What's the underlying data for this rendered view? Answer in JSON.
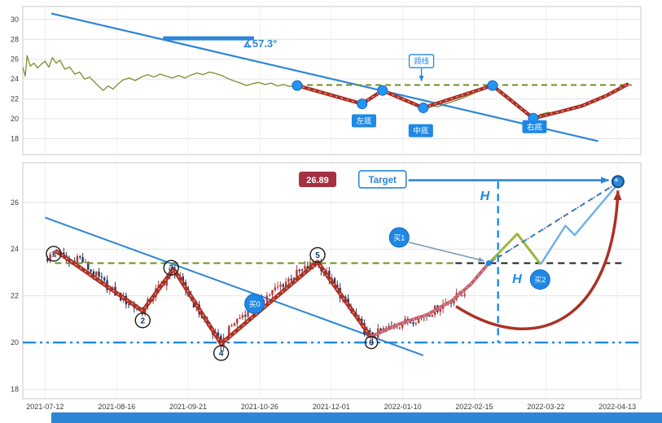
{
  "colors": {
    "accent_blue": "#2e86d6",
    "badge_blue": "#1e88e5",
    "dot_blue": "#2196f3",
    "crimson": "#a93226",
    "rose": "#c4606e",
    "zig_overlay": "#f2a0a0",
    "olive": "#7e8b2c",
    "green_line": "#6b8e23",
    "lime_zig": "#9ab73c",
    "light_blue_zig": "#6fb1e8",
    "badge_red_bg": "#a53042",
    "black_line": "#1a1a1a",
    "grid": "#e4e4e4",
    "grid_v": "#f0f0f0",
    "axis_text": "#3c3c3c",
    "panel_border": "#c9c9c9",
    "candle_up": "#b03a3a",
    "candle_down": "#24365e",
    "slate_arrow": "#7a99b8"
  },
  "footer": {
    "strip_color": "#2e86d6"
  },
  "chart_data": [
    {
      "id": "overview-pane",
      "type": "line",
      "ylim": [
        16.4,
        31.3
      ],
      "yticks": [
        30,
        28,
        26,
        24,
        22,
        20,
        18
      ],
      "grid": true,
      "series": [
        {
          "name": "price",
          "points": [
            [
              0.0,
              25.2
            ],
            [
              0.004,
              24.3
            ],
            [
              0.007,
              26.35
            ],
            [
              0.012,
              25.3
            ],
            [
              0.018,
              25.6
            ],
            [
              0.024,
              25.1
            ],
            [
              0.03,
              25.5
            ],
            [
              0.036,
              25.8
            ],
            [
              0.042,
              25.2
            ],
            [
              0.048,
              26.15
            ],
            [
              0.054,
              25.6
            ],
            [
              0.06,
              25.9
            ],
            [
              0.068,
              25.0
            ],
            [
              0.076,
              25.2
            ],
            [
              0.084,
              24.5
            ],
            [
              0.092,
              24.7
            ],
            [
              0.1,
              24.0
            ],
            [
              0.108,
              24.2
            ],
            [
              0.116,
              23.7
            ],
            [
              0.124,
              23.2
            ],
            [
              0.13,
              22.85
            ],
            [
              0.138,
              23.3
            ],
            [
              0.146,
              23.0
            ],
            [
              0.154,
              23.5
            ],
            [
              0.162,
              23.9
            ],
            [
              0.172,
              24.1
            ],
            [
              0.182,
              23.85
            ],
            [
              0.192,
              24.2
            ],
            [
              0.202,
              24.45
            ],
            [
              0.212,
              24.2
            ],
            [
              0.222,
              24.5
            ],
            [
              0.232,
              24.3
            ],
            [
              0.242,
              24.1
            ],
            [
              0.252,
              24.35
            ],
            [
              0.262,
              24.1
            ],
            [
              0.272,
              24.4
            ],
            [
              0.282,
              24.6
            ],
            [
              0.292,
              24.45
            ],
            [
              0.302,
              24.7
            ],
            [
              0.312,
              24.55
            ],
            [
              0.322,
              24.35
            ],
            [
              0.332,
              24.05
            ],
            [
              0.342,
              23.8
            ],
            [
              0.352,
              23.6
            ],
            [
              0.362,
              23.35
            ],
            [
              0.372,
              23.55
            ],
            [
              0.382,
              23.65
            ],
            [
              0.392,
              23.45
            ],
            [
              0.402,
              23.6
            ],
            [
              0.412,
              23.3
            ],
            [
              0.422,
              23.45
            ],
            [
              0.432,
              23.25
            ],
            [
              0.444,
              23.35
            ],
            [
              0.456,
              23.1
            ],
            [
              0.468,
              22.95
            ],
            [
              0.482,
              22.7
            ],
            [
              0.496,
              22.45
            ],
            [
              0.51,
              22.15
            ],
            [
              0.524,
              21.95
            ],
            [
              0.538,
              21.7
            ],
            [
              0.549,
              21.5
            ],
            [
              0.56,
              21.95
            ],
            [
              0.571,
              22.45
            ],
            [
              0.582,
              22.85
            ],
            [
              0.592,
              22.5
            ],
            [
              0.604,
              22.15
            ],
            [
              0.618,
              21.85
            ],
            [
              0.632,
              21.45
            ],
            [
              0.648,
              21.1
            ],
            [
              0.66,
              21.35
            ],
            [
              0.672,
              21.2
            ],
            [
              0.684,
              21.5
            ],
            [
              0.696,
              21.75
            ],
            [
              0.708,
              22.0
            ],
            [
              0.722,
              22.35
            ],
            [
              0.736,
              22.75
            ],
            [
              0.748,
              23.1
            ],
            [
              0.76,
              23.35
            ],
            [
              0.772,
              22.9
            ],
            [
              0.784,
              22.3
            ],
            [
              0.798,
              21.5
            ],
            [
              0.812,
              20.7
            ],
            [
              0.826,
              20.1
            ],
            [
              0.838,
              20.45
            ],
            [
              0.85,
              20.65
            ],
            [
              0.862,
              20.5
            ],
            [
              0.876,
              20.85
            ],
            [
              0.89,
              21.05
            ],
            [
              0.904,
              21.3
            ],
            [
              0.918,
              21.55
            ],
            [
              0.93,
              21.8
            ]
          ]
        }
      ],
      "trendline": {
        "from": [
          0.046,
          30.6
        ],
        "to": [
          0.931,
          17.75
        ]
      },
      "angle_marker": {
        "bar": [
          [
            0.227,
            28.1
          ],
          [
            0.374,
            28.1
          ]
        ],
        "label": "∡57.3°",
        "label_pos": [
          0.356,
          27.2
        ]
      },
      "neckline": {
        "price": 23.4,
        "x_from": 0.444,
        "x_to": 0.985
      },
      "w_pattern": {
        "points": [
          [
            0.444,
            23.35
          ],
          [
            0.549,
            21.5
          ],
          [
            0.582,
            22.85
          ],
          [
            0.648,
            21.1
          ],
          [
            0.76,
            23.35
          ],
          [
            0.826,
            20.05
          ]
        ]
      },
      "tail": {
        "points": [
          [
            0.826,
            20.05
          ],
          [
            0.868,
            20.7
          ],
          [
            0.905,
            21.3
          ],
          [
            0.945,
            22.35
          ],
          [
            0.978,
            23.45
          ]
        ]
      },
      "dots": [
        [
          0.444,
          23.35
        ],
        [
          0.549,
          21.5
        ],
        [
          0.582,
          22.85
        ],
        [
          0.648,
          21.1
        ],
        [
          0.76,
          23.35
        ],
        [
          0.826,
          20.05
        ]
      ],
      "labels": [
        {
          "text": "左底",
          "pos": [
            0.552,
            19.8
          ],
          "variant": "filled"
        },
        {
          "text": "中底",
          "pos": [
            0.644,
            18.8
          ],
          "variant": "filled"
        },
        {
          "text": "右底",
          "pos": [
            0.828,
            19.2
          ],
          "variant": "filled"
        },
        {
          "text": "颈线",
          "pos": [
            0.645,
            25.8
          ],
          "variant": "outline",
          "arrow_to": [
            0.645,
            23.8
          ]
        }
      ]
    },
    {
      "id": "main-pane",
      "type": "candlestick",
      "ylim": [
        17.6,
        27.7
      ],
      "yticks": [
        26,
        24,
        22,
        20,
        18
      ],
      "grid": true,
      "xticks": [
        {
          "label": "2021-07-12",
          "f": 0.036
        },
        {
          "label": "2021-08-16",
          "f": 0.1518
        },
        {
          "label": "2021-09-21",
          "f": 0.2675
        },
        {
          "label": "2021-10-26",
          "f": 0.3833
        },
        {
          "label": "2021-12-01",
          "f": 0.499
        },
        {
          "label": "2022-01-10",
          "f": 0.6148
        },
        {
          "label": "2022-02-15",
          "f": 0.7305
        },
        {
          "label": "2022-03-22",
          "f": 0.8463
        },
        {
          "label": "2022-04-13",
          "f": 0.962
        }
      ],
      "candles": {
        "count": 155,
        "anchors": [
          [
            0.04,
            23.6
          ],
          [
            0.055,
            23.9
          ],
          [
            0.075,
            23.4
          ],
          [
            0.09,
            23.7
          ],
          [
            0.105,
            23.2
          ],
          [
            0.125,
            22.7
          ],
          [
            0.15,
            22.1
          ],
          [
            0.175,
            21.6
          ],
          [
            0.194,
            21.35
          ],
          [
            0.215,
            22.2
          ],
          [
            0.232,
            22.7
          ],
          [
            0.244,
            23.15
          ],
          [
            0.262,
            22.3
          ],
          [
            0.285,
            21.3
          ],
          [
            0.305,
            20.5
          ],
          [
            0.321,
            19.95
          ],
          [
            0.34,
            20.8
          ],
          [
            0.36,
            21.3
          ],
          [
            0.385,
            21.8
          ],
          [
            0.41,
            22.3
          ],
          [
            0.44,
            22.9
          ],
          [
            0.46,
            23.2
          ],
          [
            0.477,
            23.45
          ],
          [
            0.495,
            22.8
          ],
          [
            0.515,
            22.0
          ],
          [
            0.535,
            21.2
          ],
          [
            0.55,
            20.6
          ],
          [
            0.563,
            20.25
          ],
          [
            0.585,
            20.55
          ],
          [
            0.61,
            20.8
          ],
          [
            0.635,
            21.0
          ],
          [
            0.66,
            21.3
          ],
          [
            0.685,
            21.7
          ],
          [
            0.705,
            22.0
          ],
          [
            0.715,
            22.2
          ]
        ]
      },
      "support_line": {
        "price": 20.0
      },
      "neckline_left": {
        "price": 23.4,
        "x_from": 0.052,
        "x_to": 0.7
      },
      "neckline_right": {
        "price": 23.4,
        "x_from": 0.7,
        "x_to": 0.972
      },
      "trendline": {
        "from": [
          0.036,
          25.35
        ],
        "to": [
          0.648,
          19.45
        ]
      },
      "w_pattern": {
        "points": [
          [
            0.055,
            23.9
          ],
          [
            0.194,
            21.35
          ],
          [
            0.244,
            23.15
          ],
          [
            0.321,
            19.95
          ],
          [
            0.477,
            23.45
          ],
          [
            0.563,
            20.25
          ]
        ]
      },
      "swing_markers": [
        {
          "n": "1",
          "pos": [
            0.05,
            23.8
          ]
        },
        {
          "n": "2",
          "pos": [
            0.194,
            20.95
          ]
        },
        {
          "n": "3",
          "pos": [
            0.24,
            23.2
          ]
        },
        {
          "n": "4",
          "pos": [
            0.321,
            19.55
          ]
        },
        {
          "n": "5",
          "pos": [
            0.477,
            23.75
          ]
        },
        {
          "n": "6",
          "pos": [
            0.564,
            20.0
          ]
        }
      ],
      "breakout": {
        "points": [
          [
            0.563,
            20.25
          ],
          [
            0.61,
            20.8
          ],
          [
            0.655,
            21.2
          ],
          [
            0.695,
            21.8
          ],
          [
            0.725,
            22.5
          ],
          [
            0.754,
            23.4
          ]
        ]
      },
      "pullback": {
        "points": [
          [
            0.754,
            23.4
          ],
          [
            0.8,
            24.65
          ],
          [
            0.838,
            23.35
          ]
        ]
      },
      "projection": {
        "from": [
          0.754,
          23.4
        ],
        "to": [
          0.963,
          26.85
        ]
      },
      "rally_zig": {
        "points": [
          [
            0.838,
            23.35
          ],
          [
            0.878,
            25.0
          ],
          [
            0.893,
            24.6
          ],
          [
            0.963,
            26.8
          ]
        ]
      },
      "measure": {
        "x": 0.769,
        "price_top": 26.89,
        "price_bottom": 20.0,
        "h_labels": [
          {
            "text": "H",
            "pos": [
              0.74,
              26.1
            ]
          },
          {
            "text": "H",
            "pos": [
              0.792,
              22.55
            ]
          }
        ]
      },
      "price_badge": {
        "text": "26.89",
        "pos": [
          0.477,
          26.97
        ]
      },
      "target": {
        "label": "Target",
        "badge_pos": [
          0.582,
          26.97
        ],
        "arrow_from_f": 0.624,
        "arrow_to_f": 0.948,
        "arrow_price": 26.95,
        "dot": [
          0.963,
          26.89
        ]
      },
      "buys": [
        {
          "text": "买0",
          "pos": [
            0.375,
            21.66
          ]
        },
        {
          "text": "买1",
          "pos": [
            0.609,
            24.5
          ],
          "arrow_to": [
            0.746,
            23.5
          ]
        },
        {
          "text": "买2",
          "pos": [
            0.837,
            22.7
          ]
        }
      ],
      "breakout_dot": [
        0.754,
        23.4
      ],
      "swing_arrow": {
        "from": [
          0.701,
          21.55
        ],
        "c1": [
          0.833,
          19.3
        ],
        "c2": [
          0.955,
          21.0
        ],
        "to": [
          0.963,
          26.5
        ]
      }
    }
  ]
}
